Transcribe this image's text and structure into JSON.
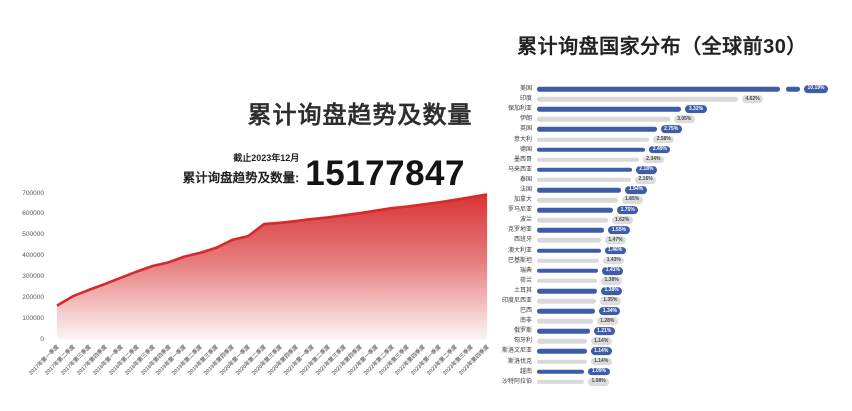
{
  "stat": {
    "asof": "截止2023年12月",
    "label": "累计询盘趋势及数量:",
    "value": "15177847"
  },
  "chart_data": [
    {
      "type": "area",
      "title": "累计询盘趋势及数量",
      "x": [
        "2017年第一季度",
        "2017年第二季度",
        "2017年第三季度",
        "2017年第四季度",
        "2018年第一季度",
        "2018年第二季度",
        "2018年第三季度",
        "2018年第四季度",
        "2019年第一季度",
        "2019年第二季度",
        "2019年第三季度",
        "2019年第四季度",
        "2020年第一季度",
        "2020年第二季度",
        "2020年第三季度",
        "2020年第四季度",
        "2021年第一季度",
        "2021年第二季度",
        "2021年第三季度",
        "2021年第四季度",
        "2022年第一季度",
        "2022年第二季度",
        "2022年第三季度",
        "2022年第四季度",
        "2023年第一季度",
        "2023年第二季度",
        "2023年第三季度",
        "2023年第四季度"
      ],
      "values": [
        165000,
        210000,
        240000,
        268000,
        298000,
        328000,
        355000,
        372000,
        400000,
        418000,
        442000,
        480000,
        498000,
        556000,
        562000,
        570000,
        580000,
        588000,
        598000,
        608000,
        620000,
        632000,
        640000,
        650000,
        660000,
        672000,
        685000,
        698000
      ],
      "ylim": [
        0,
        700000
      ],
      "y_ticks": [
        "700000",
        "600000",
        "500000",
        "400000",
        "300000",
        "200000",
        "100000",
        "0"
      ],
      "line_color": "#d7292b",
      "fill": "red-to-white-vertical-gradient",
      "grid": false,
      "legend": "none"
    },
    {
      "type": "bar",
      "orientation": "horizontal",
      "title": "累计询盘国家分布（全球前30）",
      "categories": [
        "美国",
        "印度",
        "保加利亚",
        "伊朗",
        "英国",
        "意大利",
        "德国",
        "墨西哥",
        "马来西亚",
        "泰国",
        "法国",
        "加拿大",
        "罗马尼亚",
        "波兰",
        "克罗地亚",
        "西班牙",
        "澳大利亚",
        "巴基斯坦",
        "瑞典",
        "荷兰",
        "土耳其",
        "印度尼西亚",
        "巴西",
        "南非",
        "俄罗斯",
        "匈牙利",
        "斯洛文尼亚",
        "斯洛伐克",
        "越南",
        "沙特阿拉伯"
      ],
      "values": [
        10.19,
        4.62,
        3.32,
        3.05,
        2.75,
        2.58,
        2.49,
        2.34,
        2.18,
        2.16,
        1.94,
        1.85,
        1.75,
        1.62,
        1.55,
        1.47,
        1.46,
        1.43,
        1.41,
        1.38,
        1.38,
        1.35,
        1.34,
        1.28,
        1.21,
        1.14,
        1.14,
        1.14,
        1.09,
        1.08
      ],
      "value_labels": [
        "10.19%",
        "4.62%",
        "3.32%",
        "3.05%",
        "2.75%",
        "2.58%",
        "2.49%",
        "2.34%",
        "2.18%",
        "2.16%",
        "1.94%",
        "1.85%",
        "1.75%",
        "1.62%",
        "1.55%",
        "1.47%",
        "1.46%",
        "1.43%",
        "1.41%",
        "1.38%",
        "1.38%",
        "1.35%",
        "1.34%",
        "1.28%",
        "1.21%",
        "1.14%",
        "1.14%",
        "1.14%",
        "1.09%",
        "1.08%"
      ],
      "colors": {
        "odd_rows": "#3e5ca8",
        "even_rows": "#d9d9d9"
      },
      "axis_break_first_bar": true,
      "grid": false,
      "legend": "none"
    }
  ]
}
